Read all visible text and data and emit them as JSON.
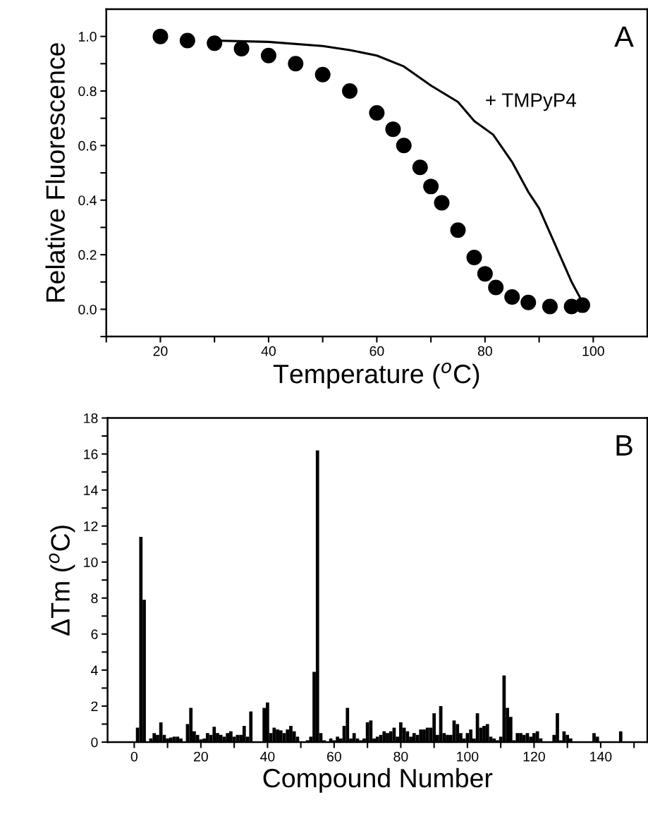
{
  "chart_data": [
    {
      "type": "scatter",
      "xlabel": "Temperature ($^{o}$C)",
      "ylabel": "Relative Fluorescence",
      "xlim": [
        10,
        110
      ],
      "ylim": [
        -0.1,
        1.1
      ],
      "xticks": [
        {
          "value": 10,
          "label": null
        },
        20,
        {
          "value": 30,
          "label": null
        },
        40,
        {
          "value": 50,
          "label": null
        },
        60,
        {
          "value": 70,
          "label": null
        },
        80,
        {
          "value": 90,
          "label": null
        },
        100
      ],
      "yticks": [
        {
          "value": -0.1,
          "label": null
        },
        {
          "value": 0,
          "label": "0.0"
        },
        {
          "value": 0.1,
          "label": null
        },
        0.2,
        {
          "value": 0.3,
          "label": null
        },
        0.4,
        {
          "value": 0.5,
          "label": null
        },
        0.6,
        {
          "value": 0.7,
          "label": null
        },
        0.8,
        {
          "value": 0.9,
          "label": null
        },
        {
          "value": 1,
          "label": "1.0"
        }
      ],
      "series": [
        {
          "type": "scatter",
          "marker": "circle",
          "color": "#000000",
          "x": [
            20,
            25,
            30,
            35,
            40,
            45,
            50,
            55,
            60,
            63,
            65,
            68,
            70,
            72,
            75,
            78,
            80,
            82,
            85,
            88,
            92,
            96,
            98
          ],
          "values": [
            1.0,
            0.985,
            0.975,
            0.955,
            0.93,
            0.9,
            0.86,
            0.8,
            0.72,
            0.66,
            0.6,
            0.52,
            0.45,
            0.39,
            0.29,
            0.19,
            0.13,
            0.08,
            0.045,
            0.025,
            0.01,
            0.01,
            0.015
          ]
        },
        {
          "type": "line",
          "marker": "none",
          "color": "#000000",
          "x": [
            30,
            40,
            50,
            55,
            60,
            65,
            70,
            75,
            78,
            81.5,
            85,
            88,
            90,
            92,
            94,
            96,
            97.5,
            98
          ],
          "values": [
            0.985,
            0.98,
            0.965,
            0.95,
            0.93,
            0.89,
            0.82,
            0.76,
            0.69,
            0.64,
            0.54,
            0.43,
            0.37,
            0.28,
            0.19,
            0.1,
            0.045,
            0.02
          ]
        }
      ],
      "annotations": [
        "A",
        "+ TMPyP4"
      ]
    },
    {
      "type": "bar",
      "xlabel": "Compound Number",
      "ylabel": "ΔTm ($^{o}$C)",
      "xlim": [
        -8,
        154
      ],
      "ylim": [
        0,
        18
      ],
      "xticks": [
        0,
        {
          "value": 10,
          "label": null
        },
        20,
        {
          "value": 30,
          "label": null
        },
        40,
        {
          "value": 50,
          "label": null
        },
        60,
        {
          "value": 70,
          "label": null
        },
        80,
        {
          "value": 90,
          "label": null
        },
        100,
        {
          "value": 110,
          "label": null
        },
        120,
        {
          "value": 130,
          "label": null
        },
        140,
        {
          "value": 150,
          "label": null
        }
      ],
      "yticks": [
        0,
        {
          "value": 1,
          "label": null
        },
        2,
        {
          "value": 3,
          "label": null
        },
        4,
        {
          "value": 5,
          "label": null
        },
        6,
        {
          "value": 7,
          "label": null
        },
        8,
        {
          "value": 9,
          "label": null
        },
        10,
        {
          "value": 11,
          "label": null
        },
        12,
        {
          "value": 13,
          "label": null
        },
        14,
        {
          "value": 15,
          "label": null
        },
        16,
        {
          "value": 17,
          "label": null
        },
        18
      ],
      "x": [
        1,
        2,
        3,
        4,
        5,
        6,
        7,
        8,
        9,
        10,
        11,
        12,
        13,
        14,
        15,
        16,
        17,
        18,
        19,
        20,
        21,
        22,
        23,
        24,
        25,
        26,
        27,
        28,
        29,
        30,
        31,
        32,
        33,
        34,
        35,
        36,
        37,
        38,
        39,
        40,
        41,
        42,
        43,
        44,
        45,
        46,
        47,
        48,
        49,
        50,
        51,
        52,
        53,
        54,
        55,
        56,
        57,
        58,
        59,
        60,
        61,
        62,
        63,
        64,
        65,
        66,
        67,
        68,
        69,
        70,
        71,
        72,
        73,
        74,
        75,
        76,
        77,
        78,
        79,
        80,
        81,
        82,
        83,
        84,
        85,
        86,
        87,
        88,
        89,
        90,
        91,
        92,
        93,
        94,
        95,
        96,
        97,
        98,
        99,
        100,
        101,
        102,
        103,
        104,
        105,
        106,
        107,
        108,
        109,
        110,
        111,
        112,
        113,
        114,
        115,
        116,
        117,
        118,
        119,
        120,
        121,
        122,
        123,
        124,
        125,
        126,
        127,
        128,
        129,
        130,
        131,
        132,
        133,
        134,
        135,
        136,
        137,
        138,
        139,
        140,
        141,
        142,
        143,
        144,
        145,
        146
      ],
      "values": [
        0.8,
        11.4,
        7.9,
        0,
        0.2,
        0.5,
        0.4,
        1.1,
        0.4,
        0.2,
        0.25,
        0.3,
        0.3,
        0.2,
        0,
        1.0,
        1.9,
        0.6,
        0.4,
        0.15,
        0.2,
        0.5,
        0.4,
        0.85,
        0.5,
        0.4,
        0.3,
        0.5,
        0.6,
        0.3,
        0.4,
        0.4,
        0.9,
        0.3,
        1.7,
        0,
        0,
        0,
        1.9,
        2.2,
        0.5,
        0.8,
        0.7,
        0.65,
        0.5,
        0.7,
        0.9,
        0.6,
        0.3,
        0,
        0,
        0.1,
        0.3,
        3.9,
        16.2,
        0.5,
        0.1,
        0,
        0.2,
        0.1,
        0.3,
        0.2,
        0.9,
        1.9,
        0.2,
        0.5,
        0.2,
        0.1,
        0.2,
        1.1,
        1.2,
        0.2,
        0.3,
        0.4,
        0.6,
        0.5,
        0.6,
        0.8,
        0.3,
        1.1,
        0.8,
        0.6,
        0.3,
        0.5,
        0.4,
        0.7,
        0.7,
        0.8,
        0.8,
        1.6,
        0.4,
        2.0,
        0.5,
        0.4,
        0.4,
        1.2,
        1.0,
        0.5,
        0.2,
        0.5,
        0.7,
        0.2,
        1.6,
        0.8,
        0.9,
        1.0,
        0.3,
        0.2,
        0.1,
        0.3,
        3.7,
        1.9,
        1.4,
        0.1,
        0.5,
        0.5,
        0.4,
        0.5,
        0.3,
        0.5,
        0.6,
        0.2,
        0,
        0,
        0,
        0.4,
        1.6,
        0.1,
        0.6,
        0.4,
        0.2,
        0,
        0,
        0,
        0,
        0,
        0,
        0.5,
        0.3,
        0,
        0,
        0,
        0,
        0,
        0,
        0.6
      ],
      "color": "#000000",
      "annotations": [
        "B"
      ]
    }
  ]
}
